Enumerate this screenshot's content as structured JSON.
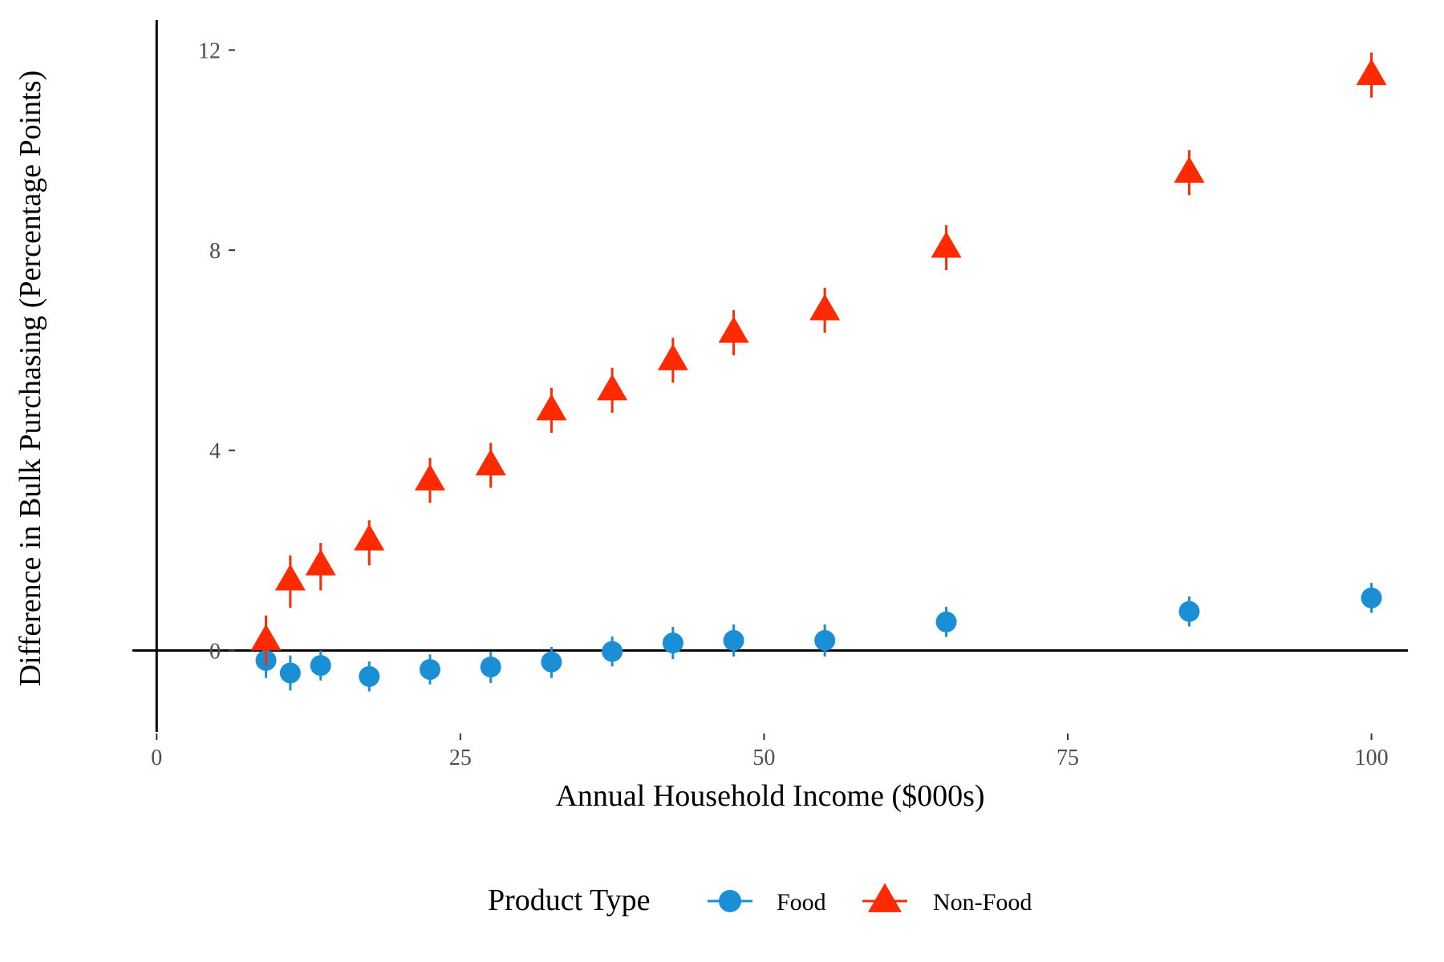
{
  "chart_data": {
    "type": "scatter",
    "xlabel": "Annual Household Income ($000s)",
    "ylabel": "Difference in Bulk Purchasing (Percentage Points)",
    "xlim": [
      -2,
      103
    ],
    "ylim": [
      -1.5,
      12.6
    ],
    "x_ticks": [
      {
        "value": 0,
        "label": "0"
      },
      {
        "value": 25,
        "label": "25"
      },
      {
        "value": 50,
        "label": "50"
      },
      {
        "value": 75,
        "label": "75"
      },
      {
        "value": 100,
        "label": "100"
      }
    ],
    "y_ticks": [
      {
        "value": 0,
        "label": "0"
      },
      {
        "value": 4,
        "label": "4"
      },
      {
        "value": 8,
        "label": "8"
      },
      {
        "value": 12,
        "label": "12"
      }
    ],
    "grid": false,
    "reference_lines": {
      "x": 0,
      "y": 0
    },
    "legend": {
      "title": "Product Type",
      "position": "bottom",
      "entries": [
        {
          "label": "Food",
          "series": "food"
        },
        {
          "label": "Non-Food",
          "series": "nonfood"
        }
      ]
    },
    "series": [
      {
        "key": "food",
        "marker": "circle",
        "color": "#1a8fd6",
        "points": [
          {
            "x": 9,
            "y": -0.2,
            "lo": -0.55,
            "hi": 0.15
          },
          {
            "x": 11,
            "y": -0.45,
            "lo": -0.8,
            "hi": -0.1
          },
          {
            "x": 13.5,
            "y": -0.3,
            "lo": -0.6,
            "hi": 0.0
          },
          {
            "x": 17.5,
            "y": -0.52,
            "lo": -0.82,
            "hi": -0.22
          },
          {
            "x": 22.5,
            "y": -0.38,
            "lo": -0.68,
            "hi": -0.08
          },
          {
            "x": 27.5,
            "y": -0.33,
            "lo": -0.65,
            "hi": -0.03
          },
          {
            "x": 32.5,
            "y": -0.23,
            "lo": -0.55,
            "hi": 0.07
          },
          {
            "x": 37.5,
            "y": -0.02,
            "lo": -0.32,
            "hi": 0.28
          },
          {
            "x": 42.5,
            "y": 0.15,
            "lo": -0.17,
            "hi": 0.47
          },
          {
            "x": 47.5,
            "y": 0.2,
            "lo": -0.12,
            "hi": 0.52
          },
          {
            "x": 55,
            "y": 0.2,
            "lo": -0.12,
            "hi": 0.52
          },
          {
            "x": 65,
            "y": 0.57,
            "lo": 0.27,
            "hi": 0.87
          },
          {
            "x": 85,
            "y": 0.78,
            "lo": 0.48,
            "hi": 1.08
          },
          {
            "x": 100,
            "y": 1.05,
            "lo": 0.75,
            "hi": 1.35
          }
        ]
      },
      {
        "key": "nonfood",
        "marker": "triangle",
        "color": "#ff2a00",
        "points": [
          {
            "x": 9,
            "y": 0.2,
            "lo": -0.3,
            "hi": 0.7
          },
          {
            "x": 11,
            "y": 1.4,
            "lo": 0.85,
            "hi": 1.9
          },
          {
            "x": 13.5,
            "y": 1.7,
            "lo": 1.2,
            "hi": 2.15
          },
          {
            "x": 17.5,
            "y": 2.2,
            "lo": 1.7,
            "hi": 2.6
          },
          {
            "x": 22.5,
            "y": 3.4,
            "lo": 2.95,
            "hi": 3.85
          },
          {
            "x": 27.5,
            "y": 3.7,
            "lo": 3.25,
            "hi": 4.15
          },
          {
            "x": 32.5,
            "y": 4.8,
            "lo": 4.35,
            "hi": 5.25
          },
          {
            "x": 37.5,
            "y": 5.2,
            "lo": 4.75,
            "hi": 5.65
          },
          {
            "x": 42.5,
            "y": 5.8,
            "lo": 5.35,
            "hi": 6.25
          },
          {
            "x": 47.5,
            "y": 6.35,
            "lo": 5.9,
            "hi": 6.8
          },
          {
            "x": 55,
            "y": 6.8,
            "lo": 6.35,
            "hi": 7.25
          },
          {
            "x": 65,
            "y": 8.05,
            "lo": 7.6,
            "hi": 8.5
          },
          {
            "x": 85,
            "y": 9.55,
            "lo": 9.1,
            "hi": 10.0
          },
          {
            "x": 100,
            "y": 11.5,
            "lo": 11.05,
            "hi": 11.95
          }
        ]
      }
    ]
  }
}
